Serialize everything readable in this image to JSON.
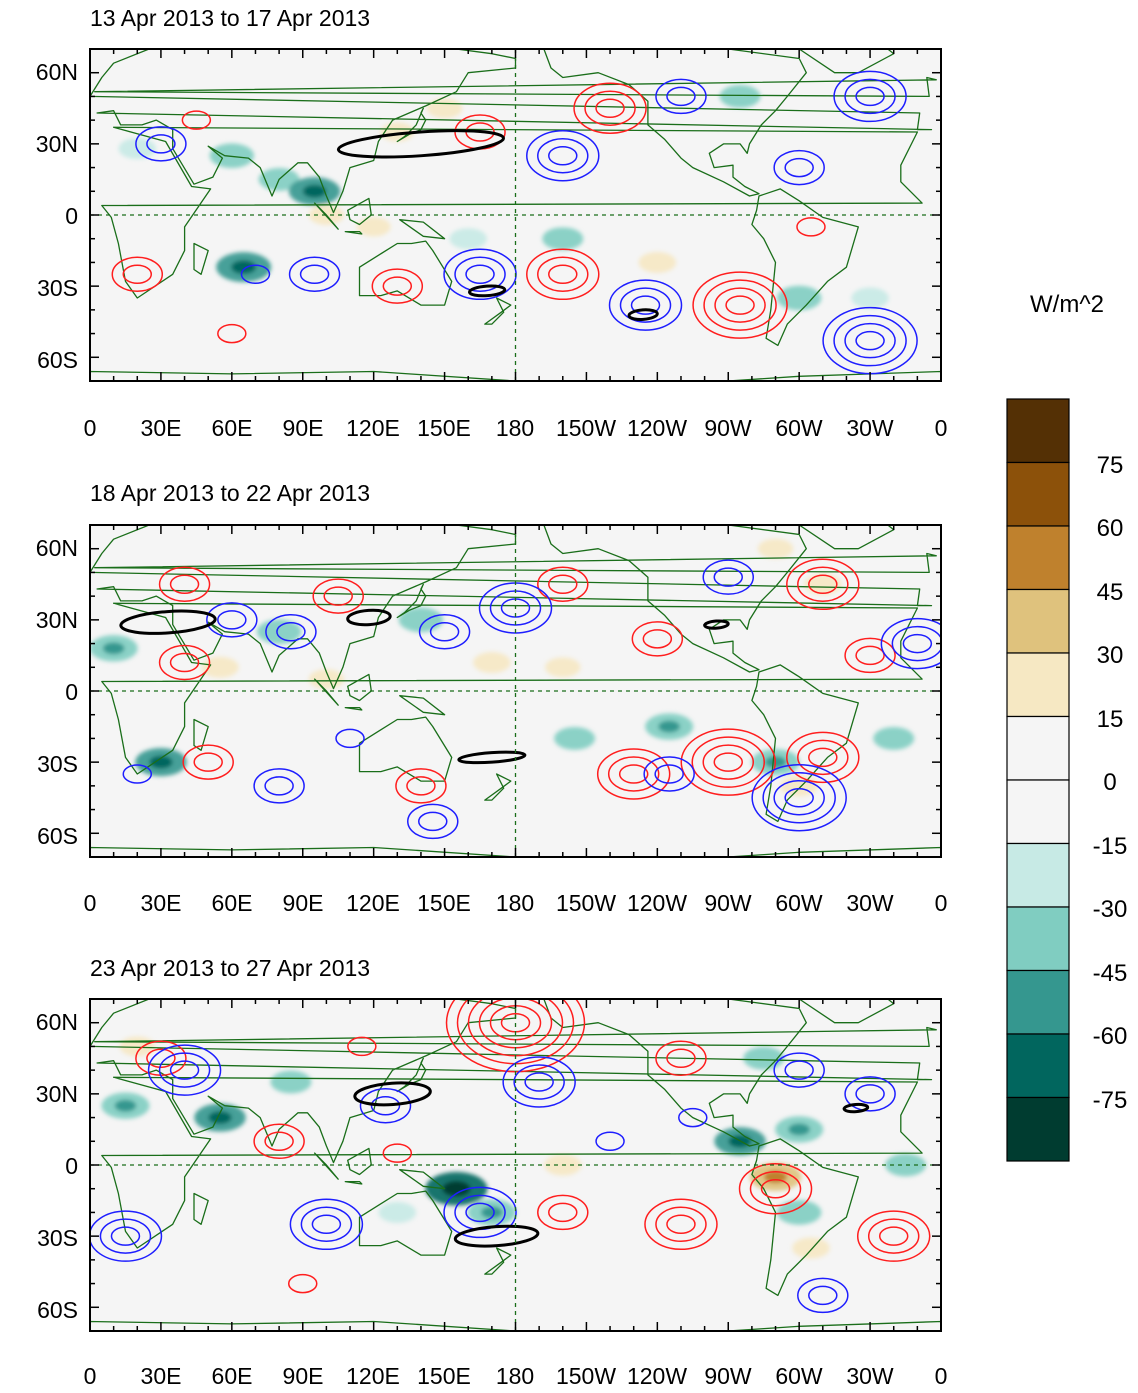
{
  "panels": [
    {
      "title": "13 Apr 2013 to 17 Apr 2013",
      "x_ticks": [
        "0",
        "30E",
        "60E",
        "90E",
        "120E",
        "150E",
        "180",
        "150W",
        "120W",
        "90W",
        "60W",
        "30W",
        "0"
      ],
      "y_ticks": [
        "60N",
        "30N",
        "0",
        "30S",
        "60S"
      ],
      "shading_blobs": [
        {
          "lon": 150,
          "lat": 45,
          "value": 22
        },
        {
          "lon": 130,
          "lat": 35,
          "value": 20
        },
        {
          "lon": 60,
          "lat": 25,
          "value": -35
        },
        {
          "lon": 80,
          "lat": 15,
          "value": -30
        },
        {
          "lon": 65,
          "lat": -22,
          "value": -50
        },
        {
          "lon": 95,
          "lat": 10,
          "value": -45
        },
        {
          "lon": 100,
          "lat": 0,
          "value": 22
        },
        {
          "lon": 120,
          "lat": -5,
          "value": 20
        },
        {
          "lon": 160,
          "lat": -10,
          "value": -25
        },
        {
          "lon": 200,
          "lat": -10,
          "value": -30
        },
        {
          "lon": 240,
          "lat": -20,
          "value": 25
        },
        {
          "lon": 275,
          "lat": 50,
          "value": -30
        },
        {
          "lon": 20,
          "lat": 28,
          "value": -25
        },
        {
          "lon": 300,
          "lat": -35,
          "value": -35
        },
        {
          "lon": 330,
          "lat": -35,
          "value": -25
        }
      ],
      "contours_positive": [
        {
          "lon": 165,
          "lat": 35,
          "rings": 2
        },
        {
          "lon": 220,
          "lat": 45,
          "rings": 3
        },
        {
          "lon": 305,
          "lat": -5,
          "rings": 1
        },
        {
          "lon": 200,
          "lat": -25,
          "rings": 3
        },
        {
          "lon": 130,
          "lat": -30,
          "rings": 2
        },
        {
          "lon": 275,
          "lat": -38,
          "rings": 4
        },
        {
          "lon": 20,
          "lat": -25,
          "rings": 2
        },
        {
          "lon": 60,
          "lat": -50,
          "rings": 1
        },
        {
          "lon": 45,
          "lat": 40,
          "rings": 1
        }
      ],
      "contours_negative": [
        {
          "lon": 30,
          "lat": 30,
          "rings": 2
        },
        {
          "lon": 200,
          "lat": 25,
          "rings": 3
        },
        {
          "lon": 330,
          "lat": 50,
          "rings": 3
        },
        {
          "lon": 300,
          "lat": 20,
          "rings": 2
        },
        {
          "lon": 250,
          "lat": 50,
          "rings": 2
        },
        {
          "lon": 95,
          "lat": -25,
          "rings": 2
        },
        {
          "lon": 165,
          "lat": -25,
          "rings": 3
        },
        {
          "lon": 235,
          "lat": -38,
          "rings": 3
        },
        {
          "lon": 330,
          "lat": -53,
          "rings": 4
        },
        {
          "lon": 70,
          "lat": -25,
          "rings": 1
        }
      ],
      "black_contours": [
        {
          "lon": 140,
          "lat": 30,
          "width": 70,
          "height": 10
        },
        {
          "lon": 168,
          "lat": -32,
          "width": 15,
          "height": 4
        },
        {
          "lon": 234,
          "lat": -42,
          "width": 12,
          "height": 4
        }
      ]
    },
    {
      "title": "18 Apr 2013 to 22 Apr 2013",
      "x_ticks": [
        "0",
        "30E",
        "60E",
        "90E",
        "120E",
        "150E",
        "180",
        "150W",
        "120W",
        "90W",
        "60W",
        "30W",
        "0"
      ],
      "y_ticks": [
        "60N",
        "30N",
        "0",
        "30S",
        "60S"
      ],
      "shading_blobs": [
        {
          "lon": 10,
          "lat": 18,
          "value": -40
        },
        {
          "lon": 30,
          "lat": -30,
          "value": -45
        },
        {
          "lon": 80,
          "lat": 25,
          "value": -35
        },
        {
          "lon": 55,
          "lat": 10,
          "value": 25
        },
        {
          "lon": 140,
          "lat": 30,
          "value": -35
        },
        {
          "lon": 170,
          "lat": 12,
          "value": 25
        },
        {
          "lon": 200,
          "lat": 10,
          "value": 22
        },
        {
          "lon": 205,
          "lat": -20,
          "value": -30
        },
        {
          "lon": 245,
          "lat": -15,
          "value": -40
        },
        {
          "lon": 290,
          "lat": -30,
          "value": -40
        },
        {
          "lon": 300,
          "lat": -40,
          "value": 25
        },
        {
          "lon": 340,
          "lat": -20,
          "value": -30
        },
        {
          "lon": 290,
          "lat": 60,
          "value": 22
        },
        {
          "lon": 310,
          "lat": 45,
          "value": 25
        },
        {
          "lon": 100,
          "lat": 5,
          "value": 22
        }
      ],
      "contours_positive": [
        {
          "lon": 40,
          "lat": 45,
          "rings": 2
        },
        {
          "lon": 40,
          "lat": 12,
          "rings": 2
        },
        {
          "lon": 105,
          "lat": 40,
          "rings": 2
        },
        {
          "lon": 200,
          "lat": 45,
          "rings": 2
        },
        {
          "lon": 240,
          "lat": 22,
          "rings": 2
        },
        {
          "lon": 310,
          "lat": 45,
          "rings": 3
        },
        {
          "lon": 330,
          "lat": 15,
          "rings": 2
        },
        {
          "lon": 230,
          "lat": -35,
          "rings": 3
        },
        {
          "lon": 270,
          "lat": -30,
          "rings": 4
        },
        {
          "lon": 310,
          "lat": -28,
          "rings": 3
        },
        {
          "lon": 140,
          "lat": -40,
          "rings": 2
        },
        {
          "lon": 50,
          "lat": -30,
          "rings": 2
        }
      ],
      "contours_negative": [
        {
          "lon": 60,
          "lat": 30,
          "rings": 2
        },
        {
          "lon": 85,
          "lat": 25,
          "rings": 2
        },
        {
          "lon": 150,
          "lat": 25,
          "rings": 2
        },
        {
          "lon": 180,
          "lat": 35,
          "rings": 3
        },
        {
          "lon": 300,
          "lat": -45,
          "rings": 4
        },
        {
          "lon": 245,
          "lat": -35,
          "rings": 2
        },
        {
          "lon": 80,
          "lat": -40,
          "rings": 2
        },
        {
          "lon": 20,
          "lat": -35,
          "rings": 1
        },
        {
          "lon": 110,
          "lat": -20,
          "rings": 1
        },
        {
          "lon": 145,
          "lat": -55,
          "rings": 2
        },
        {
          "lon": 350,
          "lat": 20,
          "rings": 3
        },
        {
          "lon": 270,
          "lat": 48,
          "rings": 2
        }
      ],
      "black_contours": [
        {
          "lon": 33,
          "lat": 29,
          "width": 40,
          "height": 9
        },
        {
          "lon": 118,
          "lat": 31,
          "width": 18,
          "height": 6
        },
        {
          "lon": 265,
          "lat": 28,
          "width": 10,
          "height": 3
        },
        {
          "lon": 170,
          "lat": -28,
          "width": 28,
          "height": 4
        }
      ]
    },
    {
      "title": "23 Apr 2013 to 27 Apr 2013",
      "x_ticks": [
        "0",
        "30E",
        "60E",
        "90E",
        "120E",
        "150E",
        "180",
        "150W",
        "120W",
        "90W",
        "60W",
        "30W",
        "0"
      ],
      "y_ticks": [
        "60N",
        "30N",
        "0",
        "30S",
        "60S"
      ],
      "shading_blobs": [
        {
          "lon": 15,
          "lat": 25,
          "value": -40
        },
        {
          "lon": 55,
          "lat": 20,
          "value": -45
        },
        {
          "lon": 85,
          "lat": 35,
          "value": -30
        },
        {
          "lon": 20,
          "lat": 50,
          "value": 22
        },
        {
          "lon": 155,
          "lat": -10,
          "value": -60
        },
        {
          "lon": 170,
          "lat": -20,
          "value": -40
        },
        {
          "lon": 200,
          "lat": 0,
          "value": 25
        },
        {
          "lon": 275,
          "lat": 10,
          "value": -45
        },
        {
          "lon": 300,
          "lat": 15,
          "value": -40
        },
        {
          "lon": 290,
          "lat": -5,
          "value": 45
        },
        {
          "lon": 300,
          "lat": -20,
          "value": -35
        },
        {
          "lon": 305,
          "lat": -35,
          "value": 25
        },
        {
          "lon": 285,
          "lat": 45,
          "value": -30
        },
        {
          "lon": 345,
          "lat": 0,
          "value": -30
        },
        {
          "lon": 130,
          "lat": -20,
          "value": -25
        }
      ],
      "contours_positive": [
        {
          "lon": 180,
          "lat": 60,
          "rings": 6
        },
        {
          "lon": 250,
          "lat": 45,
          "rings": 2
        },
        {
          "lon": 115,
          "lat": 50,
          "rings": 1
        },
        {
          "lon": 80,
          "lat": 10,
          "rings": 2
        },
        {
          "lon": 30,
          "lat": 45,
          "rings": 2
        },
        {
          "lon": 130,
          "lat": 5,
          "rings": 1
        },
        {
          "lon": 200,
          "lat": -20,
          "rings": 2
        },
        {
          "lon": 250,
          "lat": -25,
          "rings": 3
        },
        {
          "lon": 290,
          "lat": -10,
          "rings": 3
        },
        {
          "lon": 340,
          "lat": -30,
          "rings": 3
        },
        {
          "lon": 90,
          "lat": -50,
          "rings": 1
        }
      ],
      "contours_negative": [
        {
          "lon": 40,
          "lat": 40,
          "rings": 3
        },
        {
          "lon": 190,
          "lat": 35,
          "rings": 3
        },
        {
          "lon": 125,
          "lat": 25,
          "rings": 2
        },
        {
          "lon": 255,
          "lat": 20,
          "rings": 1
        },
        {
          "lon": 330,
          "lat": 30,
          "rings": 2
        },
        {
          "lon": 300,
          "lat": 40,
          "rings": 2
        },
        {
          "lon": 165,
          "lat": -20,
          "rings": 3
        },
        {
          "lon": 100,
          "lat": -25,
          "rings": 3
        },
        {
          "lon": 15,
          "lat": -30,
          "rings": 3
        },
        {
          "lon": 310,
          "lat": -55,
          "rings": 2
        },
        {
          "lon": 220,
          "lat": 10,
          "rings": 1
        }
      ],
      "black_contours": [
        {
          "lon": 128,
          "lat": 30,
          "width": 32,
          "height": 9
        },
        {
          "lon": 172,
          "lat": -30,
          "width": 35,
          "height": 8
        },
        {
          "lon": 324,
          "lat": 24,
          "width": 10,
          "height": 3
        }
      ]
    }
  ],
  "colorbar": {
    "title": "W/m^2",
    "labels": [
      "75",
      "60",
      "45",
      "30",
      "15",
      "0",
      "-15",
      "-30",
      "-45",
      "-60",
      "-75"
    ],
    "colors": [
      "#543005",
      "#8c510a",
      "#bf812d",
      "#dfc27d",
      "#f6e8c3",
      "#f5f5f5",
      "#f5f5f5",
      "#c7eae5",
      "#80cdc1",
      "#35978f",
      "#01665e",
      "#003c30"
    ]
  },
  "style": {
    "positive_contour_color": "#ff1e1e",
    "negative_contour_color": "#1e1eff",
    "coastline_color": "#1a6e1a",
    "background_color": "#f5f5f5"
  }
}
